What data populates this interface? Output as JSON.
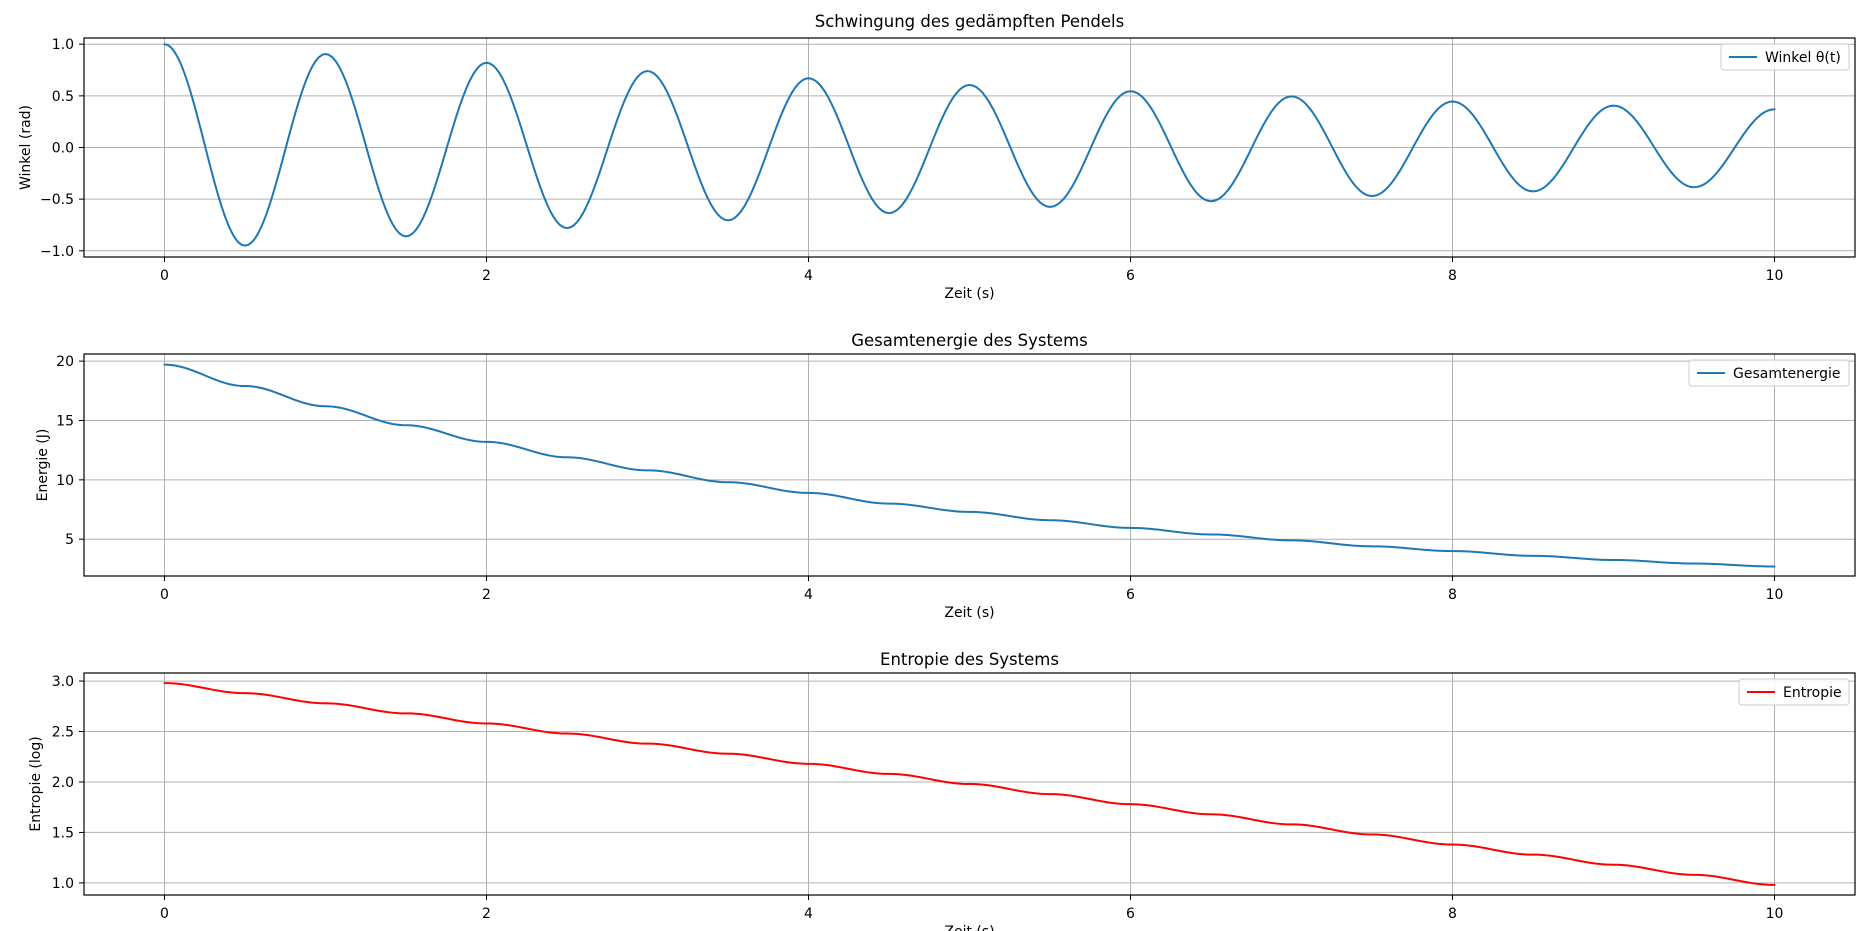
{
  "figure": {
    "colors": {
      "blue": "#1f77b4",
      "red": "#ff0000",
      "grid": "#b0b0b0",
      "axis": "#000000"
    }
  },
  "chart_data": [
    {
      "type": "line",
      "title": "Schwingung des gedämpften Pendels",
      "xlabel": "Zeit (s)",
      "ylabel": "Winkel (rad)",
      "xlim": [
        -0.5,
        10.5
      ],
      "ylim": [
        -1.06,
        1.06
      ],
      "xticks": [
        0,
        2,
        4,
        6,
        8,
        10
      ],
      "xtick_labels": [
        "0",
        "2",
        "4",
        "6",
        "8",
        "10"
      ],
      "yticks": [
        -1.0,
        -0.5,
        0.0,
        0.5,
        1.0
      ],
      "ytick_labels": [
        "−1.0",
        "−0.5",
        "0.0",
        "0.5",
        "1.0"
      ],
      "grid": true,
      "legend": "upper right",
      "series": [
        {
          "name": "Winkel θ(t)",
          "color": "#1f77b4",
          "x": [
            0,
            0.5,
            1.0,
            1.5,
            2.0,
            2.5,
            3.0,
            3.5,
            4.0,
            4.5,
            5.0,
            5.5,
            6.0,
            6.5,
            7.0,
            7.5,
            8.0,
            8.5,
            9.0,
            9.5,
            10.0
          ],
          "y": [
            1.0,
            -0.95,
            0.905,
            -0.86,
            0.82,
            -0.78,
            0.74,
            -0.705,
            0.67,
            -0.635,
            0.605,
            -0.575,
            0.545,
            -0.52,
            0.495,
            -0.47,
            0.445,
            -0.425,
            0.405,
            -0.385,
            0.37
          ]
        }
      ]
    },
    {
      "type": "line",
      "title": "Gesamtenergie des Systems",
      "xlabel": "Zeit (s)",
      "ylabel": "Energie (J)",
      "xlim": [
        -0.5,
        10.5
      ],
      "ylim": [
        1.9,
        20.6
      ],
      "xticks": [
        0,
        2,
        4,
        6,
        8,
        10
      ],
      "xtick_labels": [
        "0",
        "2",
        "4",
        "6",
        "8",
        "10"
      ],
      "yticks": [
        5,
        10,
        15,
        20
      ],
      "ytick_labels": [
        "5",
        "10",
        "15",
        "20"
      ],
      "grid": true,
      "legend": "upper right",
      "series": [
        {
          "name": "Gesamtenergie",
          "color": "#1f77b4",
          "x": [
            0,
            0.5,
            1.0,
            1.5,
            2.0,
            2.5,
            3.0,
            3.5,
            4.0,
            4.5,
            5.0,
            5.5,
            6.0,
            6.5,
            7.0,
            7.5,
            8.0,
            8.5,
            9.0,
            9.5,
            10.0
          ],
          "y": [
            19.7,
            17.9,
            16.2,
            14.6,
            13.2,
            11.9,
            10.8,
            9.8,
            8.9,
            8.0,
            7.3,
            6.6,
            5.95,
            5.4,
            4.9,
            4.4,
            4.0,
            3.6,
            3.25,
            2.95,
            2.7
          ]
        }
      ]
    },
    {
      "type": "line",
      "title": "Entropie des Systems",
      "xlabel": "Zeit (s)",
      "ylabel": "Entropie (log)",
      "xlim": [
        -0.5,
        10.5
      ],
      "ylim": [
        0.88,
        3.08
      ],
      "xticks": [
        0,
        2,
        4,
        6,
        8,
        10
      ],
      "xtick_labels": [
        "0",
        "2",
        "4",
        "6",
        "8",
        "10"
      ],
      "yticks": [
        1.0,
        1.5,
        2.0,
        2.5,
        3.0
      ],
      "ytick_labels": [
        "1.0",
        "1.5",
        "2.0",
        "2.5",
        "3.0"
      ],
      "grid": true,
      "legend": "upper right",
      "series": [
        {
          "name": "Entropie",
          "color": "#ff0000",
          "x": [
            0,
            0.5,
            1.0,
            1.5,
            2.0,
            2.5,
            3.0,
            3.5,
            4.0,
            4.5,
            5.0,
            5.5,
            6.0,
            6.5,
            7.0,
            7.5,
            8.0,
            8.5,
            9.0,
            9.5,
            10.0
          ],
          "y": [
            2.98,
            2.88,
            2.78,
            2.68,
            2.58,
            2.48,
            2.38,
            2.28,
            2.18,
            2.08,
            1.98,
            1.88,
            1.78,
            1.68,
            1.58,
            1.48,
            1.38,
            1.28,
            1.18,
            1.08,
            0.98
          ]
        }
      ]
    }
  ]
}
